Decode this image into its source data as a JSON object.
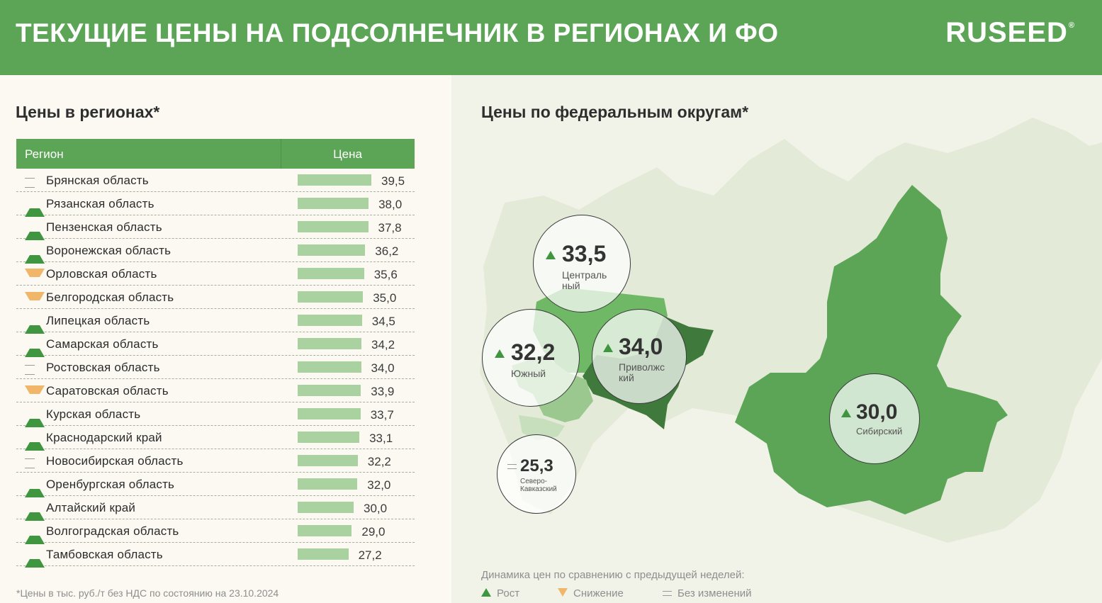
{
  "header": {
    "title": "ТЕКУЩИЕ ЦЕНЫ НА ПОДСОЛНЕЧНИК В РЕГИОНАХ И ФО",
    "logo": "RUSEED",
    "logo_mark": "®",
    "background": "#5ca557"
  },
  "regions_section": {
    "title": "Цены в регионах*",
    "columns": {
      "region": "Регион",
      "price": "Цена"
    },
    "rows": [
      {
        "region": "Брянская область",
        "price": "39,5",
        "value": 39.5,
        "trend": "same"
      },
      {
        "region": "Рязанская область",
        "price": "38,0",
        "value": 38.0,
        "trend": "up"
      },
      {
        "region": "Пензенская область",
        "price": "37,8",
        "value": 37.8,
        "trend": "up"
      },
      {
        "region": "Воронежская область",
        "price": "36,2",
        "value": 36.2,
        "trend": "up"
      },
      {
        "region": "Орловская область",
        "price": "35,6",
        "value": 35.6,
        "trend": "down"
      },
      {
        "region": "Белгородская область",
        "price": "35,0",
        "value": 35.0,
        "trend": "down"
      },
      {
        "region": "Липецкая область",
        "price": "34,5",
        "value": 34.5,
        "trend": "up"
      },
      {
        "region": "Самарская область",
        "price": "34,2",
        "value": 34.2,
        "trend": "up"
      },
      {
        "region": "Ростовская область",
        "price": "34,0",
        "value": 34.0,
        "trend": "same"
      },
      {
        "region": "Саратовская область",
        "price": "33,9",
        "value": 33.9,
        "trend": "down"
      },
      {
        "region": "Курская область",
        "price": "33,7",
        "value": 33.7,
        "trend": "up"
      },
      {
        "region": "Краснодарский край",
        "price": "33,1",
        "value": 33.1,
        "trend": "up"
      },
      {
        "region": "Новосибирская область",
        "price": "32,2",
        "value": 32.2,
        "trend": "same"
      },
      {
        "region": "Оренбургская область",
        "price": "32,0",
        "value": 32.0,
        "trend": "up"
      },
      {
        "region": "Алтайский край",
        "price": "30,0",
        "value": 30.0,
        "trend": "up"
      },
      {
        "region": "Волгоградская область",
        "price": "29,0",
        "value": 29.0,
        "trend": "up"
      },
      {
        "region": "Тамбовская область",
        "price": "27,2",
        "value": 27.2,
        "trend": "up"
      }
    ],
    "footnote": "*Цены в тыс. руб./т без НДС по состоянию на 23.10.2024"
  },
  "districts_section": {
    "title": "Цены по федеральным округам*",
    "districts": [
      {
        "name": "Централь\nный",
        "price": "33,5",
        "trend": "up"
      },
      {
        "name": "Южный",
        "price": "32,2",
        "trend": "up"
      },
      {
        "name": "Приволжс\nкий",
        "price": "34,0",
        "trend": "up"
      },
      {
        "name": "Северо-\nКавказский",
        "price": "25,3",
        "trend": "same"
      },
      {
        "name": "Сибирский",
        "price": "30,0",
        "trend": "up"
      }
    ]
  },
  "legend": {
    "title": "Динамика цен по сравнению с предыдущей неделей:",
    "up": "Рост",
    "down": "Снижение",
    "same": "Без изменений"
  },
  "colors": {
    "up": "#3f9540",
    "down": "#f0b66a",
    "same": "#9a9a9a",
    "bar": "#a9d2a0"
  }
}
